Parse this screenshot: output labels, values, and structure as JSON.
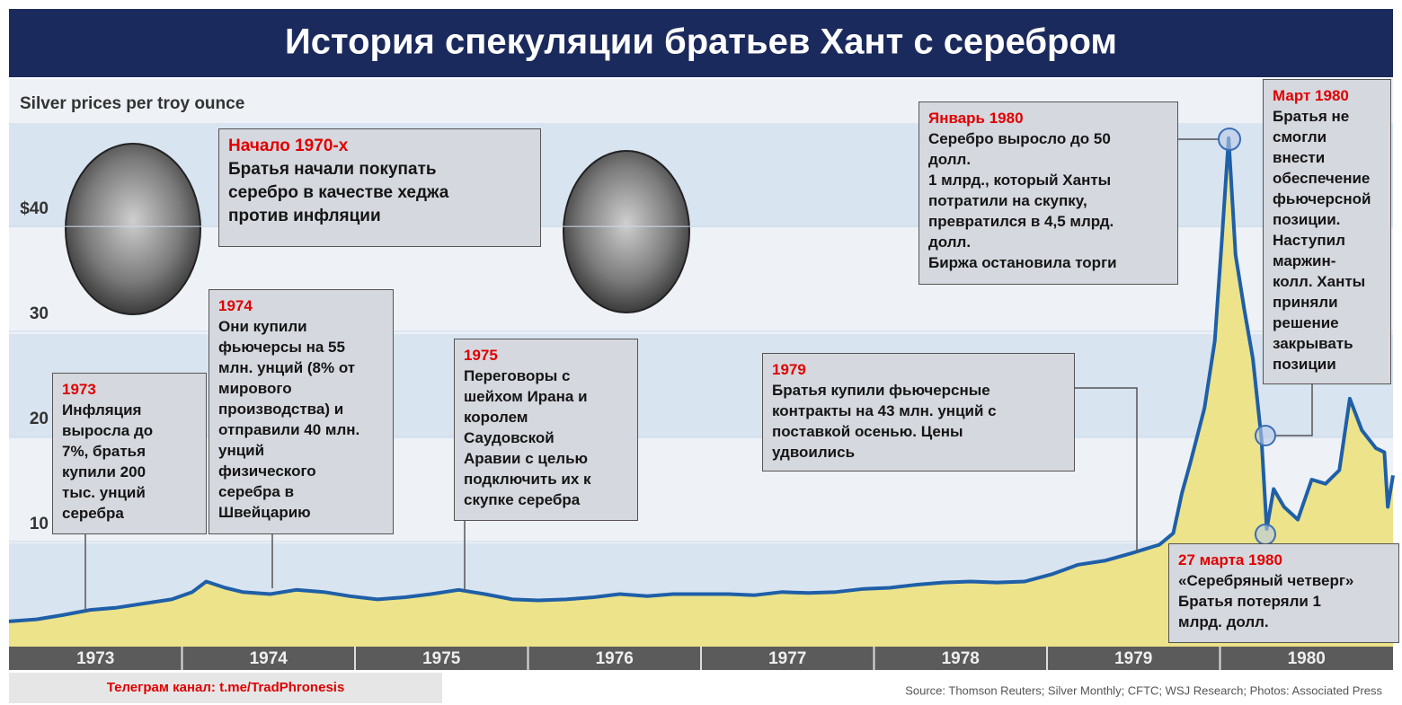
{
  "chart_data": {
    "type": "area",
    "title": "История спекуляции братьев Хант с серебром",
    "subtitle": "Silver prices per troy ounce",
    "x": [
      1973.0,
      1973.16,
      1973.31,
      1973.47,
      1973.62,
      1973.78,
      1973.94,
      1974.06,
      1974.14,
      1974.25,
      1974.35,
      1974.51,
      1974.66,
      1974.82,
      1974.97,
      1975.13,
      1975.29,
      1975.44,
      1975.6,
      1975.75,
      1975.91,
      1976.06,
      1976.22,
      1976.38,
      1976.53,
      1976.69,
      1976.84,
      1977.0,
      1977.16,
      1977.31,
      1977.47,
      1977.62,
      1977.78,
      1977.94,
      1978.09,
      1978.25,
      1978.4,
      1978.56,
      1978.71,
      1978.87,
      1979.03,
      1979.18,
      1979.34,
      1979.49,
      1979.65,
      1979.73,
      1979.78,
      1979.83,
      1979.91,
      1979.97,
      1980.01,
      1980.05,
      1980.09,
      1980.14,
      1980.19,
      1980.24,
      1980.27,
      1980.31,
      1980.37,
      1980.45,
      1980.53,
      1980.61,
      1980.69,
      1980.75,
      1980.82,
      1980.9,
      1980.95,
      1980.97,
      1981.0
    ],
    "values": [
      2.4,
      2.6,
      3.0,
      3.5,
      3.7,
      4.1,
      4.5,
      5.2,
      6.2,
      5.6,
      5.2,
      5.0,
      5.4,
      5.2,
      4.8,
      4.5,
      4.7,
      5.0,
      5.4,
      5.0,
      4.5,
      4.4,
      4.5,
      4.7,
      5.0,
      4.8,
      5.0,
      5.0,
      5.0,
      4.9,
      5.2,
      5.1,
      5.2,
      5.5,
      5.6,
      5.9,
      6.1,
      6.2,
      6.1,
      6.2,
      6.9,
      7.8,
      8.2,
      8.9,
      9.7,
      10.8,
      14.6,
      17.6,
      22.7,
      29.1,
      38.5,
      48.4,
      37.3,
      32.1,
      27.4,
      19.7,
      11.2,
      15.0,
      13.3,
      12.1,
      15.9,
      15.5,
      16.8,
      23.6,
      20.6,
      18.9,
      18.5,
      13.3,
      16.3
    ],
    "color": "#1f5fa8",
    "area_color": "#ece38a",
    "xlim": [
      1973,
      1981
    ],
    "xticks": [
      1973,
      1974,
      1975,
      1976,
      1977,
      1978,
      1979,
      1980
    ],
    "ylim": [
      0,
      53
    ],
    "yticks": [
      {
        "value": 40,
        "label": "$40"
      },
      30,
      20,
      10
    ],
    "annotations": [
      {
        "date": "Начало 1970-х",
        "lines": [
          "Братья начали покупать",
          "серебро в качестве хеджа",
          "против инфляции"
        ]
      },
      {
        "date": "1973",
        "lines": [
          "Инфляция",
          "выросла до",
          "7%, братья",
          "купили 200",
          "тыс. унций",
          "серебра"
        ]
      },
      {
        "date": "1974",
        "lines": [
          "Они купили",
          "фьючерсы на 55",
          "млн. унций (8% от",
          "мирового",
          "производства) и",
          "отправили 40 млн.",
          "унций",
          "физического",
          "серебра в",
          "Швейцарию"
        ]
      },
      {
        "date": "1975",
        "lines": [
          "Переговоры с",
          "шейхом Ирана и",
          "королем",
          "Саудовской",
          "Аравии с целью",
          "подключить их к",
          "скупке серебра"
        ]
      },
      {
        "date": "1979",
        "lines": [
          "Братья купили фьючерсные",
          "контракты на 43 млн. унций с",
          "поставкой осенью. Цены",
          "удвоились"
        ]
      },
      {
        "date": "Январь 1980",
        "lines": [
          "Серебро выросло до 50",
          "долл.",
          "1 млрд., который Ханты",
          "потратили на скупку,",
          "превратился в 4,5 млрд.",
          "долл.",
          "Биржа остановила торги"
        ]
      },
      {
        "date": "Март 1980",
        "lines": [
          "Братья не",
          "смогли",
          "внести",
          "обеспечение",
          "фьючерсной",
          "позиции.",
          "Наступил",
          "маржин-",
          "колл. Ханты",
          "приняли",
          "решение",
          "закрывать",
          "позиции"
        ]
      },
      {
        "date": "27 марта 1980",
        "lines": [
          "«Серебряный четверг»",
          "Братья потеряли 1",
          "млрд. долл."
        ]
      }
    ],
    "telegram": "Телеграм канал: t.me/TradPhronesis",
    "source": "Source: Thomson Reuters; Silver Monthly; CFTC; WSJ Research; Photos: Associated Press"
  }
}
